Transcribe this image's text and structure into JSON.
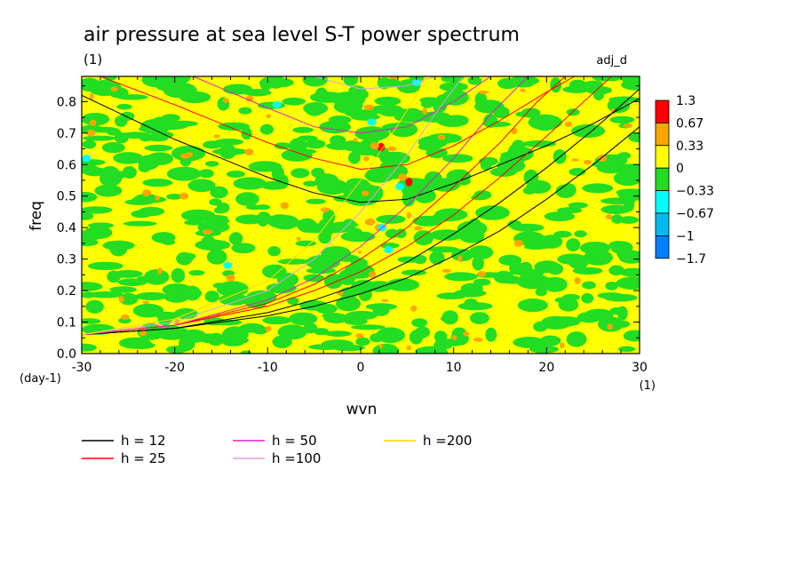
{
  "chart_data": {
    "type": "heatmap",
    "title": "air pressure at sea level S-T power spectrum",
    "title_unit": "(1)",
    "corner_label": "adj_d",
    "xlabel": "wvn",
    "x_unit": "(1)",
    "ylabel": "freq",
    "y_unit": "(day-1)",
    "xlim": [
      -30,
      30
    ],
    "ylim": [
      0,
      0.88
    ],
    "x_ticks": [
      "-30",
      "-20",
      "-10",
      "0",
      "10",
      "20",
      "30"
    ],
    "x_tick_values": [
      -30,
      -20,
      -10,
      0,
      10,
      20,
      30
    ],
    "y_ticks": [
      "0.0",
      "0.1",
      "0.2",
      "0.3",
      "0.4",
      "0.5",
      "0.6",
      "0.7",
      "0.8"
    ],
    "y_tick_values": [
      0,
      0.1,
      0.2,
      0.3,
      0.4,
      0.5,
      0.6,
      0.7,
      0.8
    ],
    "colorbar": {
      "labels": [
        "1.3",
        "0.67",
        "0.33",
        "0",
        "−0.33",
        "−0.67",
        "−1",
        "−1.7"
      ],
      "colors": [
        "#ff0000",
        "#ffa500",
        "#ffff00",
        "#22dd22",
        "#00ffff",
        "#00bbee",
        "#0080ff"
      ]
    },
    "field_colors": {
      "yellow": "#ffff00",
      "green": "#22dd22",
      "orange": "#ffa500",
      "red": "#ff0000",
      "cyan": "#00ffff"
    },
    "legend": [
      {
        "label": "h = 12",
        "color": "#000000"
      },
      {
        "label": "h = 25",
        "color": "#ff0000"
      },
      {
        "label": "h = 50",
        "color": "#e020c0"
      },
      {
        "label": "h =100",
        "color": "#e0a0e0"
      },
      {
        "label": "h =200",
        "color": "#ffd700"
      }
    ],
    "curves": [
      {
        "series": "h = 12",
        "kind": "wig",
        "points": [
          [
            -30,
            0.82
          ],
          [
            -20,
            0.68
          ],
          [
            -10,
            0.56
          ],
          [
            -5,
            0.51
          ],
          [
            0,
            0.48
          ],
          [
            5,
            0.49
          ],
          [
            10,
            0.54
          ],
          [
            15,
            0.6
          ],
          [
            20,
            0.66
          ],
          [
            25,
            0.73
          ],
          [
            30,
            0.81
          ]
        ]
      },
      {
        "series": "h = 12",
        "kind": "kelvin",
        "points": [
          [
            -30,
            0.06
          ],
          [
            -20,
            0.08
          ],
          [
            -10,
            0.12
          ],
          [
            -5,
            0.15
          ],
          [
            0,
            0.19
          ],
          [
            5,
            0.24
          ],
          [
            10,
            0.31
          ],
          [
            15,
            0.39
          ],
          [
            20,
            0.49
          ],
          [
            25,
            0.6
          ],
          [
            30,
            0.72
          ]
        ]
      },
      {
        "series": "h = 12",
        "kind": "mrg",
        "points": [
          [
            -30,
            0.06
          ],
          [
            -20,
            0.08
          ],
          [
            -10,
            0.13
          ],
          [
            -5,
            0.17
          ],
          [
            0,
            0.22
          ],
          [
            5,
            0.29
          ],
          [
            10,
            0.38
          ],
          [
            15,
            0.48
          ],
          [
            20,
            0.59
          ],
          [
            25,
            0.71
          ],
          [
            30,
            0.84
          ]
        ]
      },
      {
        "series": "h = 25",
        "kind": "wig",
        "points": [
          [
            -28,
            0.88
          ],
          [
            -20,
            0.79
          ],
          [
            -10,
            0.67
          ],
          [
            -5,
            0.62
          ],
          [
            0,
            0.585
          ],
          [
            5,
            0.6
          ],
          [
            10,
            0.66
          ],
          [
            15,
            0.74
          ],
          [
            20,
            0.83
          ],
          [
            23,
            0.88
          ]
        ]
      },
      {
        "series": "h = 25",
        "kind": "kelvin",
        "points": [
          [
            -30,
            0.06
          ],
          [
            -20,
            0.09
          ],
          [
            -10,
            0.15
          ],
          [
            -5,
            0.2
          ],
          [
            0,
            0.26
          ],
          [
            5,
            0.34
          ],
          [
            10,
            0.44
          ],
          [
            15,
            0.56
          ],
          [
            20,
            0.69
          ],
          [
            24,
            0.8
          ],
          [
            27,
            0.88
          ]
        ]
      },
      {
        "series": "h = 25",
        "kind": "mrg",
        "points": [
          [
            -30,
            0.06
          ],
          [
            -20,
            0.09
          ],
          [
            -10,
            0.16
          ],
          [
            -5,
            0.22
          ],
          [
            0,
            0.3
          ],
          [
            5,
            0.4
          ],
          [
            10,
            0.53
          ],
          [
            15,
            0.67
          ],
          [
            19,
            0.8
          ],
          [
            22,
            0.88
          ]
        ]
      },
      {
        "series": "h = 50",
        "kind": "wig",
        "points": [
          [
            -18,
            0.88
          ],
          [
            -10,
            0.78
          ],
          [
            -5,
            0.72
          ],
          [
            0,
            0.7
          ],
          [
            5,
            0.72
          ],
          [
            10,
            0.8
          ],
          [
            14,
            0.88
          ]
        ]
      },
      {
        "series": "h = 50",
        "kind": "kelvin",
        "points": [
          [
            -30,
            0.06
          ],
          [
            -20,
            0.09
          ],
          [
            -10,
            0.17
          ],
          [
            -5,
            0.24
          ],
          [
            0,
            0.34
          ],
          [
            5,
            0.47
          ],
          [
            10,
            0.62
          ],
          [
            14,
            0.76
          ],
          [
            18,
            0.88
          ]
        ]
      },
      {
        "series": "h =100",
        "kind": "kelvin",
        "points": [
          [
            -30,
            0.06
          ],
          [
            -20,
            0.1
          ],
          [
            -10,
            0.2
          ],
          [
            -5,
            0.3
          ],
          [
            0,
            0.45
          ],
          [
            5,
            0.63
          ],
          [
            8,
            0.76
          ],
          [
            11,
            0.88
          ]
        ]
      },
      {
        "series": "h =100",
        "kind": "wig",
        "points": [
          [
            -5,
            0.88
          ],
          [
            0,
            0.84
          ],
          [
            5,
            0.85
          ],
          [
            8,
            0.88
          ]
        ]
      },
      {
        "series": "h =200",
        "kind": "kelvin",
        "points": [
          [
            -30,
            0.06
          ],
          [
            -20,
            0.11
          ],
          [
            -10,
            0.23
          ],
          [
            -5,
            0.36
          ],
          [
            0,
            0.55
          ],
          [
            3,
            0.68
          ],
          [
            6,
            0.82
          ],
          [
            7,
            0.88
          ]
        ]
      }
    ],
    "spots": [
      {
        "x": 2.2,
        "y": 0.655,
        "value": 1.3
      },
      {
        "x": 5.2,
        "y": 0.545,
        "value": 1.3
      },
      {
        "x": 1.5,
        "y": 0.66,
        "value": 0.67
      },
      {
        "x": 4.5,
        "y": 0.56,
        "value": 0.67
      },
      {
        "x": -23,
        "y": 0.51,
        "value": 0.67
      },
      {
        "x": -29,
        "y": 0.7,
        "value": 0.67
      },
      {
        "x": -14,
        "y": 0.24,
        "value": 0.67
      },
      {
        "x": -12,
        "y": 0.64,
        "value": 0.67
      },
      {
        "x": 2,
        "y": 0.4,
        "value": 0.67
      },
      {
        "x": 17,
        "y": 0.35,
        "value": 0.67
      },
      {
        "x": -19,
        "y": 0.5,
        "value": 0.67
      },
      {
        "x": 26,
        "y": 0.62,
        "value": 0.67
      },
      {
        "x": -14.3,
        "y": 0.28,
        "value": -0.33
      },
      {
        "x": 1.2,
        "y": 0.735,
        "value": -0.33
      },
      {
        "x": 3,
        "y": 0.33,
        "value": -0.33
      },
      {
        "x": -29.5,
        "y": 0.62,
        "value": -0.33
      },
      {
        "x": 6,
        "y": 0.86,
        "value": -0.33
      },
      {
        "x": 4.2,
        "y": 0.53,
        "value": -0.33
      },
      {
        "x": 2.3,
        "y": 0.4,
        "value": -0.33
      },
      {
        "x": -9,
        "y": 0.79,
        "value": -0.33
      }
    ]
  }
}
